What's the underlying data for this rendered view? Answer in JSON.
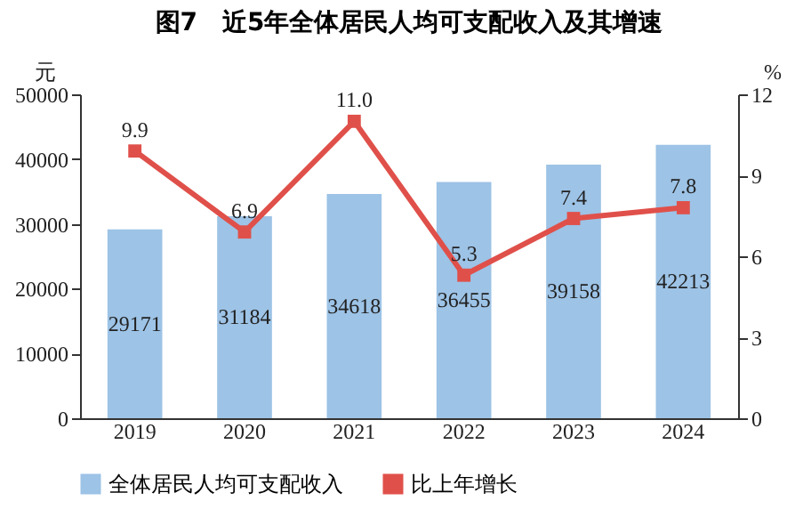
{
  "chart_data": {
    "type": "bar",
    "title": "图7　近5年全体居民人均可支配收入及其增速",
    "ylabel": "元",
    "y2label": "%",
    "categories": [
      "2019",
      "2020",
      "2021",
      "2022",
      "2023",
      "2024"
    ],
    "series": [
      {
        "name": "全体居民人均可支配收入",
        "color": "#9dc3e6",
        "values": [
          29171,
          31184,
          34618,
          36455,
          39158,
          42213
        ],
        "value_labels": [
          "29171",
          "31184",
          "34618",
          "36455",
          "39158",
          "42213"
        ]
      },
      {
        "name": "比上年增长",
        "type": "line",
        "axis": "y2",
        "color": "#e0504a",
        "marker": "square",
        "values": [
          9.9,
          6.9,
          11.0,
          5.3,
          7.4,
          7.8
        ],
        "value_labels": [
          "9.9",
          "6.9",
          "11.0",
          "5.3",
          "7.4",
          "7.8"
        ]
      }
    ],
    "ylim": [
      0,
      50000
    ],
    "yticks": [
      0,
      10000,
      20000,
      30000,
      40000,
      50000
    ],
    "y2lim": [
      0,
      12
    ],
    "y2ticks": [
      0,
      3,
      6,
      9,
      12
    ],
    "grid": false,
    "legend": "bottom"
  }
}
